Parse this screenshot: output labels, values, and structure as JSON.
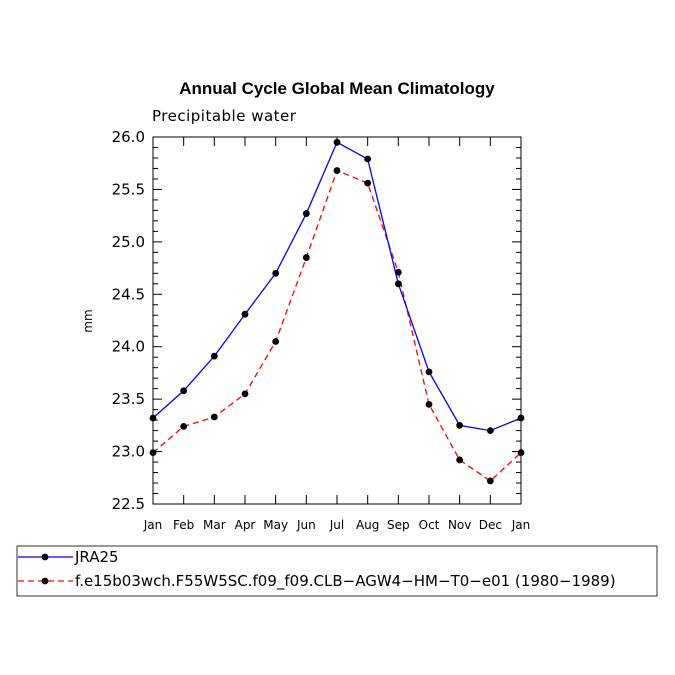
{
  "chart_data": {
    "type": "line",
    "title": "Annual Cycle Global Mean Climatology",
    "subtitle": "Precipitable water",
    "xlabel": "",
    "ylabel": "mm",
    "categories": [
      "Jan",
      "Feb",
      "Mar",
      "Apr",
      "May",
      "Jun",
      "Jul",
      "Aug",
      "Sep",
      "Oct",
      "Nov",
      "Dec",
      "Jan"
    ],
    "ylim": [
      22.5,
      26.0
    ],
    "yticks": [
      "22.5",
      "23.0",
      "23.5",
      "24.0",
      "24.5",
      "25.0",
      "25.5",
      "26.0"
    ],
    "grid": false,
    "legend_position": "bottom",
    "series": [
      {
        "name": "JRA25",
        "color": "#0000ff",
        "line_style": "solid",
        "values": [
          23.32,
          23.58,
          23.91,
          24.31,
          24.7,
          25.27,
          25.95,
          25.79,
          24.6,
          23.76,
          23.25,
          23.2,
          23.32
        ]
      },
      {
        "name": "f.e15b03wch.F55W5SC.f09_f09.CLB−AGW4−HM−T0−e01 (1980−1989)",
        "color": "#ff0000",
        "line_style": "dashed",
        "values": [
          22.99,
          23.24,
          23.33,
          23.55,
          24.05,
          24.85,
          25.68,
          25.56,
          24.71,
          23.45,
          22.92,
          22.72,
          22.99
        ]
      }
    ]
  }
}
